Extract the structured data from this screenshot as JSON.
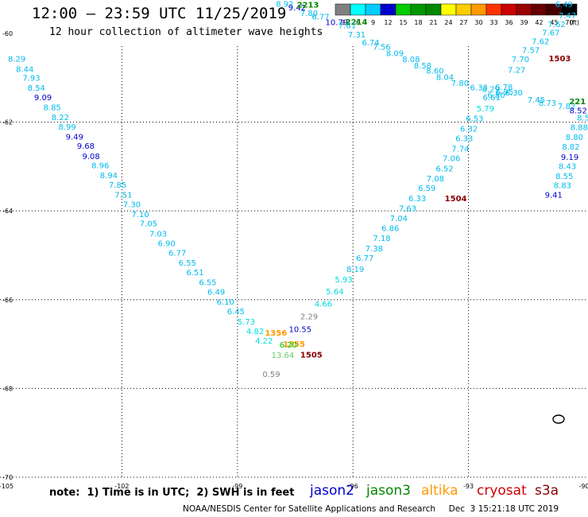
{
  "header": {
    "title": "12:00 — 23:59 UTC 11/25/2019",
    "subtitle": "12 hour collection of altimeter wave heights"
  },
  "footer": {
    "note": "note:  1) Time is in UTC;  2) SWH is in feet",
    "credit": "NOAA/NESDIS Center for Satellite Applications and Research     Dec  3 15:21:18 UTC 2019",
    "satellites": [
      {
        "name": "jason2",
        "color": "#0000cc"
      },
      {
        "name": "jason3",
        "color": "#008800"
      },
      {
        "name": "altika",
        "color": "#ff9900"
      },
      {
        "name": "cryosat",
        "color": "#cc0000"
      },
      {
        "name": "s3a",
        "color": "#880000"
      }
    ]
  },
  "colorscale": {
    "labels": [
      "3",
      "6",
      "9",
      "12",
      "15",
      "18",
      "21",
      "24",
      "27",
      "30",
      "33",
      "36",
      "39",
      "42",
      "45",
      "70"
    ],
    "unit": "(ft)",
    "colors": [
      "#808080",
      "#00ffff",
      "#00ccff",
      "#0000cc",
      "#00cc00",
      "#009900",
      "#008800",
      "#ffff00",
      "#ffcc00",
      "#ff9900",
      "#ff3300",
      "#cc0000",
      "#990000",
      "#660000",
      "#440000",
      "#000000"
    ]
  },
  "chart_data": {
    "type": "scatter",
    "title": "12:00 — 23:59 UTC 11/25/2019",
    "subtitle": "12 hour collection of altimeter wave heights",
    "x_ticks": [
      "-105",
      "-102",
      "-99",
      "-96",
      "-93",
      "-90"
    ],
    "y_ticks": [
      "-60",
      "-62",
      "-64",
      "-66",
      "-68",
      "-70"
    ],
    "xlim": [
      -105,
      -90
    ],
    "ylim": [
      -70,
      -59.75
    ],
    "grid": true,
    "series": [
      {
        "name": "jason2",
        "color": "#0000cc"
      },
      {
        "name": "jason3",
        "color": "#008800"
      },
      {
        "name": "altika",
        "color": "#ff9900"
      },
      {
        "name": "cryosat",
        "color": "#cc0000"
      },
      {
        "name": "s3a",
        "color": "#880000"
      }
    ],
    "points": [
      {
        "lon": -104.73,
        "lat": -60.64,
        "label": "8.29",
        "color": "#00bbee"
      },
      {
        "lon": -104.52,
        "lat": -60.87,
        "label": "8.44",
        "color": "#00bbee"
      },
      {
        "lon": -104.35,
        "lat": -61.07,
        "label": "7.93",
        "color": "#00bbee"
      },
      {
        "lon": -104.22,
        "lat": -61.29,
        "label": "8.54",
        "color": "#00bbee"
      },
      {
        "lon": -104.05,
        "lat": -61.51,
        "label": "9.09",
        "color": "#0000cc"
      },
      {
        "lon": -103.81,
        "lat": -61.73,
        "label": "8.85",
        "color": "#00bbee"
      },
      {
        "lon": -103.6,
        "lat": -61.95,
        "label": "8.22",
        "color": "#00bbee"
      },
      {
        "lon": -103.42,
        "lat": -62.17,
        "label": "8.99",
        "color": "#00bbee"
      },
      {
        "lon": -103.23,
        "lat": -62.39,
        "label": "9.49",
        "color": "#0000cc"
      },
      {
        "lon": -102.94,
        "lat": -62.6,
        "label": "9.68",
        "color": "#0000cc"
      },
      {
        "lon": -102.8,
        "lat": -62.83,
        "label": "9.08",
        "color": "#0000cc"
      },
      {
        "lon": -102.56,
        "lat": -63.04,
        "label": "8.96",
        "color": "#00bbee"
      },
      {
        "lon": -102.34,
        "lat": -63.26,
        "label": "8.94",
        "color": "#00bbee"
      },
      {
        "lon": -102.11,
        "lat": -63.48,
        "label": "7.85",
        "color": "#00bbee"
      },
      {
        "lon": -101.96,
        "lat": -63.7,
        "label": "7.51",
        "color": "#00bbee"
      },
      {
        "lon": -101.74,
        "lat": -63.92,
        "label": "7.30",
        "color": "#00bbee"
      },
      {
        "lon": -101.52,
        "lat": -64.14,
        "label": "7.10",
        "color": "#00bbee"
      },
      {
        "lon": -101.31,
        "lat": -64.35,
        "label": "7.05",
        "color": "#00bbee"
      },
      {
        "lon": -101.06,
        "lat": -64.58,
        "label": "7.03",
        "color": "#00bbee"
      },
      {
        "lon": -100.84,
        "lat": -64.79,
        "label": "6.90",
        "color": "#00bbee"
      },
      {
        "lon": -100.56,
        "lat": -65.01,
        "label": "6.77",
        "color": "#00bbee"
      },
      {
        "lon": -100.3,
        "lat": -65.23,
        "label": "6.55",
        "color": "#00bbee"
      },
      {
        "lon": -100.1,
        "lat": -65.45,
        "label": "6.51",
        "color": "#00bbee"
      },
      {
        "lon": -99.77,
        "lat": -65.67,
        "label": "6.55",
        "color": "#00bbee"
      },
      {
        "lon": -99.55,
        "lat": -65.89,
        "label": "6.49",
        "color": "#00bbee"
      },
      {
        "lon": -99.31,
        "lat": -66.11,
        "label": "6.10",
        "color": "#00bbee"
      },
      {
        "lon": -99.04,
        "lat": -66.33,
        "label": "6.45",
        "color": "#00bbee"
      },
      {
        "lon": -98.77,
        "lat": -66.56,
        "label": "5.73",
        "color": "#00dddd"
      },
      {
        "lon": -98.54,
        "lat": -66.77,
        "label": "4.82",
        "color": "#00dddd"
      },
      {
        "lon": -98.31,
        "lat": -66.99,
        "label": "4.22",
        "color": "#00dddd"
      },
      {
        "lon": -98.0,
        "lat": -66.81,
        "label": "1356",
        "color": "#ff9900",
        "bold": true,
        "size": 12
      },
      {
        "lon": -97.37,
        "lat": -66.73,
        "label": "10.55",
        "color": "#0000cc"
      },
      {
        "lon": -97.14,
        "lat": -66.44,
        "label": "2.29",
        "color": "#808080"
      },
      {
        "lon": -97.53,
        "lat": -67.06,
        "label": "1355",
        "color": "#ff9900",
        "bold": true,
        "size": 12
      },
      {
        "lon": -97.68,
        "lat": -67.08,
        "label": "6.20",
        "color": "#00cc00"
      },
      {
        "lon": -97.82,
        "lat": -67.31,
        "label": "13.64",
        "color": "#66cc66"
      },
      {
        "lon": -97.08,
        "lat": -67.3,
        "label": "1505",
        "color": "#880000",
        "bold": true,
        "size": 12
      },
      {
        "lon": -98.12,
        "lat": -67.74,
        "label": "0.59",
        "color": "#808080"
      },
      {
        "lon": -96.77,
        "lat": -66.16,
        "label": "4.66",
        "color": "#00dddd"
      },
      {
        "lon": -96.47,
        "lat": -65.88,
        "label": "5.64",
        "color": "#00dddd"
      },
      {
        "lon": -96.24,
        "lat": -65.61,
        "label": "5.93",
        "color": "#00dddd"
      },
      {
        "lon": -95.94,
        "lat": -65.38,
        "label": "8.19",
        "color": "#00bbee"
      },
      {
        "lon": -95.69,
        "lat": -65.13,
        "label": "6.77",
        "color": "#00bbee"
      },
      {
        "lon": -95.45,
        "lat": -64.91,
        "label": "7.38",
        "color": "#00bbee"
      },
      {
        "lon": -95.25,
        "lat": -64.68,
        "label": "7.18",
        "color": "#00bbee"
      },
      {
        "lon": -95.03,
        "lat": -64.45,
        "label": "6.86",
        "color": "#00bbee"
      },
      {
        "lon": -94.81,
        "lat": -64.23,
        "label": "7.04",
        "color": "#00bbee"
      },
      {
        "lon": -94.58,
        "lat": -64.01,
        "label": "7.63",
        "color": "#00bbee"
      },
      {
        "lon": -94.33,
        "lat": -63.78,
        "label": "6.33",
        "color": "#00bbee"
      },
      {
        "lon": -94.08,
        "lat": -63.55,
        "label": "6.59",
        "color": "#00bbee"
      },
      {
        "lon": -93.86,
        "lat": -63.33,
        "label": "7.08",
        "color": "#00bbee"
      },
      {
        "lon": -93.33,
        "lat": -63.78,
        "label": "1504",
        "color": "#880000",
        "bold": true,
        "size": 12
      },
      {
        "lon": -93.62,
        "lat": -63.11,
        "label": "6.52",
        "color": "#00bbee"
      },
      {
        "lon": -93.44,
        "lat": -62.88,
        "label": "7.06",
        "color": "#00bbee"
      },
      {
        "lon": -93.21,
        "lat": -62.66,
        "label": "7.74",
        "color": "#00bbee"
      },
      {
        "lon": -93.11,
        "lat": -62.43,
        "label": "6.33",
        "color": "#00bbee"
      },
      {
        "lon": -92.99,
        "lat": -62.21,
        "label": "6.32",
        "color": "#00bbee"
      },
      {
        "lon": -92.84,
        "lat": -61.98,
        "label": "6.53",
        "color": "#00bbee"
      },
      {
        "lon": -92.56,
        "lat": -61.76,
        "label": "5.79",
        "color": "#00dddd"
      },
      {
        "lon": -92.4,
        "lat": -61.51,
        "label": "6.61",
        "color": "#00bbee"
      },
      {
        "lon": -92.08,
        "lat": -61.27,
        "label": "6.78",
        "color": "#00bbee"
      },
      {
        "lon": -91.75,
        "lat": -60.89,
        "label": "7.27",
        "color": "#00bbee"
      },
      {
        "lon": -91.65,
        "lat": -60.65,
        "label": "7.70",
        "color": "#00bbee"
      },
      {
        "lon": -91.38,
        "lat": -60.44,
        "label": "7.57",
        "color": "#00bbee"
      },
      {
        "lon": -91.13,
        "lat": -60.24,
        "label": "7.62",
        "color": "#00bbee"
      },
      {
        "lon": -90.86,
        "lat": -60.05,
        "label": "7.67",
        "color": "#00bbee"
      },
      {
        "lon": -90.71,
        "lat": -59.86,
        "label": "7.62",
        "color": "#00bbee"
      },
      {
        "lon": -90.43,
        "lat": -59.66,
        "label": "7.47",
        "color": "#00bbee"
      },
      {
        "lon": -90.52,
        "lat": -59.41,
        "label": "6.49",
        "color": "#00bbee"
      },
      {
        "lon": -90.63,
        "lat": -60.63,
        "label": "1503",
        "color": "#880000",
        "bold": true,
        "size": 12
      },
      {
        "lon": -97.77,
        "lat": -59.4,
        "label": "8.92",
        "color": "#00bbee"
      },
      {
        "lon": -97.45,
        "lat": -59.48,
        "label": "9.42",
        "color": "#0000cc"
      },
      {
        "lon": -97.17,
        "lat": -59.42,
        "label": "2213",
        "color": "#008800",
        "bold": true,
        "size": 12
      },
      {
        "lon": -97.14,
        "lat": -59.61,
        "label": "7.80",
        "color": "#00bbee"
      },
      {
        "lon": -96.84,
        "lat": -59.69,
        "label": "6.77",
        "color": "#00bbee"
      },
      {
        "lon": -96.42,
        "lat": -59.81,
        "label": "10.79",
        "color": "#0000cc"
      },
      {
        "lon": -95.91,
        "lat": -59.8,
        "label": "2214",
        "color": "#008800",
        "bold": true,
        "size": 12
      },
      {
        "lon": -96.15,
        "lat": -59.88,
        "label": "7.61",
        "color": "#00bbee"
      },
      {
        "lon": -95.9,
        "lat": -60.09,
        "label": "7.31",
        "color": "#00bbee"
      },
      {
        "lon": -95.54,
        "lat": -60.27,
        "label": "6.74",
        "color": "#00bbee"
      },
      {
        "lon": -95.25,
        "lat": -60.37,
        "label": "7.56",
        "color": "#00bbee"
      },
      {
        "lon": -94.91,
        "lat": -60.51,
        "label": "8.09",
        "color": "#00bbee"
      },
      {
        "lon": -94.49,
        "lat": -60.65,
        "label": "8.08",
        "color": "#00bbee"
      },
      {
        "lon": -94.19,
        "lat": -60.79,
        "label": "8.58",
        "color": "#00bbee"
      },
      {
        "lon": -93.87,
        "lat": -60.91,
        "label": "8.60",
        "color": "#00bbee"
      },
      {
        "lon": -93.61,
        "lat": -61.05,
        "label": "8.04",
        "color": "#00bbee"
      },
      {
        "lon": -93.22,
        "lat": -61.18,
        "label": "7.80",
        "color": "#00bbee"
      },
      {
        "lon": -92.73,
        "lat": -61.28,
        "label": "6.33",
        "color": "#00bbee"
      },
      {
        "lon": -92.42,
        "lat": -61.32,
        "label": "8.29",
        "color": "#00bbee"
      },
      {
        "lon": -92.06,
        "lat": -61.38,
        "label": "6.95",
        "color": "#00bbee"
      },
      {
        "lon": -92.28,
        "lat": -61.45,
        "label": "6.80",
        "color": "#00bbee"
      },
      {
        "lon": -91.82,
        "lat": -61.4,
        "label": "6.30",
        "color": "#00bbee"
      },
      {
        "lon": -91.24,
        "lat": -61.56,
        "label": "7.45",
        "color": "#00bbee"
      },
      {
        "lon": -90.95,
        "lat": -61.63,
        "label": "8.73",
        "color": "#00bbee"
      },
      {
        "lon": -90.45,
        "lat": -61.7,
        "label": "7.82",
        "color": "#00bbee"
      },
      {
        "lon": -90.17,
        "lat": -61.6,
        "label": "221",
        "color": "#008800",
        "bold": true,
        "size": 12
      },
      {
        "lon": -90.15,
        "lat": -61.8,
        "label": "8.52",
        "color": "#0000cc"
      },
      {
        "lon": -90.02,
        "lat": -61.96,
        "label": "8.5",
        "color": "#00bbee"
      },
      {
        "lon": -90.13,
        "lat": -62.18,
        "label": "8.88",
        "color": "#00bbee"
      },
      {
        "lon": -90.25,
        "lat": -62.4,
        "label": "8.80",
        "color": "#00bbee"
      },
      {
        "lon": -90.34,
        "lat": -62.62,
        "label": "8.82",
        "color": "#00bbee"
      },
      {
        "lon": -90.37,
        "lat": -62.85,
        "label": "9.19",
        "color": "#0000cc"
      },
      {
        "lon": -90.43,
        "lat": -63.06,
        "label": "8.43",
        "color": "#00bbee"
      },
      {
        "lon": -90.51,
        "lat": -63.28,
        "label": "8.55",
        "color": "#00bbee"
      },
      {
        "lon": -90.56,
        "lat": -63.49,
        "label": "8.83",
        "color": "#00bbee"
      },
      {
        "lon": -90.79,
        "lat": -63.7,
        "label": "9.41",
        "color": "#0000cc"
      }
    ]
  }
}
